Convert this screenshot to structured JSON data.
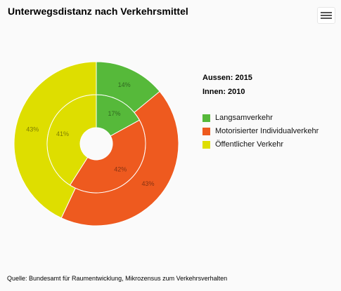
{
  "title": "Unterwegsdistanz nach Verkehrsmittel",
  "menu": {
    "icon": "hamburger-menu-icon"
  },
  "series_info": {
    "outer": "Aussen: 2015",
    "inner": "Innen: 2010"
  },
  "legend": [
    {
      "label": "Langsamverkehr",
      "color": "#56b93a"
    },
    {
      "label": "Motorisierter Individualverkehr",
      "color": "#ee5a1f"
    },
    {
      "label": "Öffentlicher Verkehr",
      "color": "#dede00"
    }
  ],
  "source": "Quelle: Bundesamt für Raumentwicklung, Mikrozensus zum Verkehrsverhalten",
  "chart_data": {
    "type": "pie",
    "categories": [
      "Langsamverkehr",
      "Motorisierter Individualverkehr",
      "Öffentlicher Verkehr"
    ],
    "colors": [
      "#56b93a",
      "#ee5a1f",
      "#dede00"
    ],
    "series": [
      {
        "name": "Innen: 2010",
        "values": [
          17,
          42,
          41
        ],
        "labels": [
          "17%",
          "42%",
          "41%"
        ]
      },
      {
        "name": "Aussen: 2015",
        "values": [
          14,
          43,
          43
        ],
        "labels": [
          "14%",
          "43%",
          "43%"
        ]
      }
    ]
  }
}
